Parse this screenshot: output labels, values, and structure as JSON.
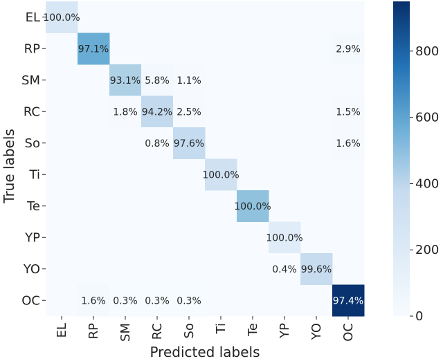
{
  "chart_data": {
    "type": "heatmap",
    "xlabel": "Predicted labels",
    "ylabel": "True labels",
    "x_categories": [
      "EL",
      "RP",
      "SM",
      "RC",
      "So",
      "Ti",
      "Te",
      "YP",
      "YO",
      "OC"
    ],
    "y_categories": [
      "EL",
      "RP",
      "SM",
      "RC",
      "So",
      "Ti",
      "Te",
      "YP",
      "YO",
      "OC"
    ],
    "colorbar": {
      "min": 0,
      "max": 950,
      "ticks": [
        0,
        200,
        400,
        600,
        800
      ]
    },
    "colors": {
      "low": "#f7fbff",
      "mid": "#9ecae1",
      "high": "#08306b"
    },
    "cells": [
      {
        "row": 0,
        "col": 0,
        "label": "100.0%",
        "count": 150
      },
      {
        "row": 1,
        "col": 1,
        "label": "97.1%",
        "count": 480
      },
      {
        "row": 1,
        "col": 9,
        "label": "2.9%",
        "count": 14
      },
      {
        "row": 2,
        "col": 2,
        "label": "93.1%",
        "count": 310
      },
      {
        "row": 2,
        "col": 3,
        "label": "5.8%",
        "count": 19
      },
      {
        "row": 2,
        "col": 4,
        "label": "1.1%",
        "count": 4
      },
      {
        "row": 3,
        "col": 2,
        "label": "1.8%",
        "count": 6
      },
      {
        "row": 3,
        "col": 3,
        "label": "94.2%",
        "count": 250
      },
      {
        "row": 3,
        "col": 4,
        "label": "2.5%",
        "count": 7
      },
      {
        "row": 3,
        "col": 9,
        "label": "1.5%",
        "count": 4
      },
      {
        "row": 4,
        "col": 3,
        "label": "0.8%",
        "count": 2
      },
      {
        "row": 4,
        "col": 4,
        "label": "97.6%",
        "count": 240
      },
      {
        "row": 4,
        "col": 9,
        "label": "1.6%",
        "count": 4
      },
      {
        "row": 5,
        "col": 5,
        "label": "100.0%",
        "count": 190
      },
      {
        "row": 6,
        "col": 6,
        "label": "100.0%",
        "count": 390
      },
      {
        "row": 7,
        "col": 7,
        "label": "100.0%",
        "count": 110
      },
      {
        "row": 8,
        "col": 7,
        "label": "0.4%",
        "count": 1
      },
      {
        "row": 8,
        "col": 8,
        "label": "99.6%",
        "count": 230
      },
      {
        "row": 9,
        "col": 1,
        "label": "1.6%",
        "count": 15
      },
      {
        "row": 9,
        "col": 2,
        "label": "0.3%",
        "count": 3
      },
      {
        "row": 9,
        "col": 3,
        "label": "0.3%",
        "count": 3
      },
      {
        "row": 9,
        "col": 4,
        "label": "0.3%",
        "count": 3
      },
      {
        "row": 9,
        "col": 9,
        "label": "97.4%",
        "count": 940
      }
    ]
  }
}
